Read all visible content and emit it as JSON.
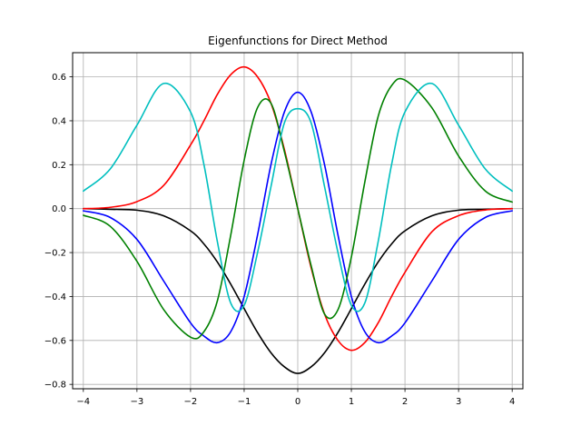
{
  "chart_data": {
    "type": "line",
    "title": "Eigenfunctions for Direct Method",
    "xlabel": "",
    "ylabel": "",
    "xlim": [
      -4.2,
      4.2
    ],
    "ylim": [
      -0.82,
      0.71
    ],
    "xticks": [
      -4,
      -3,
      -2,
      -1,
      0,
      1,
      2,
      3,
      4
    ],
    "xtick_labels": [
      "−4",
      "−3",
      "−2",
      "−1",
      "0",
      "1",
      "2",
      "3",
      "4"
    ],
    "yticks": [
      -0.8,
      -0.6,
      -0.4,
      -0.2,
      0.0,
      0.2,
      0.4,
      0.6
    ],
    "ytick_labels": [
      "−0.8",
      "−0.6",
      "−0.4",
      "−0.2",
      "0.0",
      "0.2",
      "0.4",
      "0.6"
    ],
    "grid": true,
    "legend": "none",
    "x": [
      -4,
      -3.5,
      -3,
      -2.5,
      -2,
      -1.75,
      -1.5,
      -1.25,
      -1,
      -0.75,
      -0.5,
      -0.25,
      0,
      0.25,
      0.5,
      0.75,
      1,
      1.25,
      1.5,
      1.75,
      2,
      2.5,
      3,
      3.5,
      4
    ],
    "series": [
      {
        "color": "#000000",
        "values": [
          0.0,
          -0.003,
          -0.007,
          -0.033,
          -0.101,
          -0.161,
          -0.243,
          -0.344,
          -0.455,
          -0.564,
          -0.656,
          -0.72,
          -0.75,
          -0.72,
          -0.656,
          -0.564,
          -0.455,
          -0.344,
          -0.243,
          -0.161,
          -0.101,
          -0.033,
          -0.007,
          -0.003,
          0.0
        ]
      },
      {
        "color": "#ff0000",
        "values": [
          0.0,
          0.006,
          0.032,
          0.106,
          0.29,
          0.4,
          0.52,
          0.61,
          0.645,
          0.6,
          0.48,
          0.27,
          0.0,
          -0.27,
          -0.48,
          -0.6,
          -0.645,
          -0.61,
          -0.52,
          -0.4,
          -0.29,
          -0.106,
          -0.032,
          -0.006,
          0.0
        ]
      },
      {
        "color": "#0000ff",
        "values": [
          -0.01,
          -0.04,
          -0.14,
          -0.33,
          -0.52,
          -0.58,
          -0.61,
          -0.56,
          -0.4,
          -0.12,
          0.2,
          0.44,
          0.53,
          0.44,
          0.2,
          -0.12,
          -0.4,
          -0.56,
          -0.61,
          -0.58,
          -0.52,
          -0.33,
          -0.14,
          -0.04,
          -0.01
        ]
      },
      {
        "color": "#008000",
        "values": [
          -0.03,
          -0.08,
          -0.24,
          -0.46,
          -0.585,
          -0.56,
          -0.42,
          -0.12,
          0.22,
          0.46,
          0.48,
          0.26,
          0.0,
          -0.26,
          -0.48,
          -0.46,
          -0.22,
          0.12,
          0.42,
          0.56,
          0.585,
          0.46,
          0.24,
          0.08,
          0.03
        ]
      },
      {
        "color": "#00bfbf",
        "values": [
          0.08,
          0.18,
          0.38,
          0.57,
          0.44,
          0.2,
          -0.15,
          -0.43,
          -0.44,
          -0.2,
          0.1,
          0.39,
          0.455,
          0.39,
          0.1,
          -0.2,
          -0.44,
          -0.43,
          -0.15,
          0.2,
          0.44,
          0.57,
          0.38,
          0.18,
          0.08
        ]
      }
    ]
  }
}
